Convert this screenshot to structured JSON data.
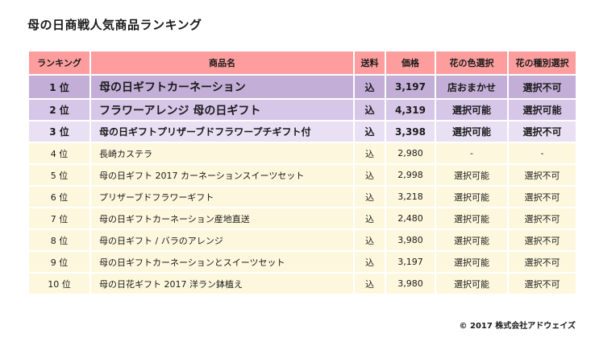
{
  "title": "母の日商戦人気商品ランキング",
  "columns": [
    "ランキング",
    "商品名",
    "送料",
    "価格",
    "花の色選択",
    "花の種別選択"
  ],
  "rows": [
    {
      "rank": "1 位",
      "name": "母の日ギフトカーネーション",
      "shipping": "込",
      "price": "3,197",
      "color": "店おまかせ",
      "type": "選択不可"
    },
    {
      "rank": "2 位",
      "name": "フラワーアレンジ 母の日ギフト",
      "shipping": "込",
      "price": "4,319",
      "color": "選択可能",
      "type": "選択可能"
    },
    {
      "rank": "3 位",
      "name": "母の日ギフトプリザーブドフラワープチギフト付",
      "shipping": "込",
      "price": "3,398",
      "color": "選択可能",
      "type": "選択不可"
    },
    {
      "rank": "4 位",
      "name": "長崎カステラ",
      "shipping": "込",
      "price": "2,980",
      "color": "-",
      "type": "-"
    },
    {
      "rank": "5 位",
      "name": "母の日ギフト 2017 カーネーションスイーツセット",
      "shipping": "込",
      "price": "2,998",
      "color": "選択可能",
      "type": "選択不可"
    },
    {
      "rank": "6 位",
      "name": "プリザーブドフラワーギフト",
      "shipping": "込",
      "price": "3,218",
      "color": "選択可能",
      "type": "選択不可"
    },
    {
      "rank": "7 位",
      "name": "母の日ギフトカーネーション産地直送",
      "shipping": "込",
      "price": "2,480",
      "color": "選択可能",
      "type": "選択不可"
    },
    {
      "rank": "8 位",
      "name": "母の日ギフト / バラのアレンジ",
      "shipping": "込",
      "price": "3,980",
      "color": "選択可能",
      "type": "選択不可"
    },
    {
      "rank": "9 位",
      "name": "母の日ギフトカーネーションとスイーツセット",
      "shipping": "込",
      "price": "3,197",
      "color": "選択可能",
      "type": "選択不可"
    },
    {
      "rank": "10 位",
      "name": "母の日花ギフト 2017 洋ラン鉢植え",
      "shipping": "込",
      "price": "3,980",
      "color": "選択可能",
      "type": "選択不可"
    }
  ],
  "copyright": "© 2017 株式会社アドウェイズ",
  "colors": {
    "header": "#fd9d9d",
    "rank1": "#c3aed7",
    "rank2": "#d6c6e8",
    "rank3": "#e9e0f4",
    "other": "#fdf8dd"
  }
}
